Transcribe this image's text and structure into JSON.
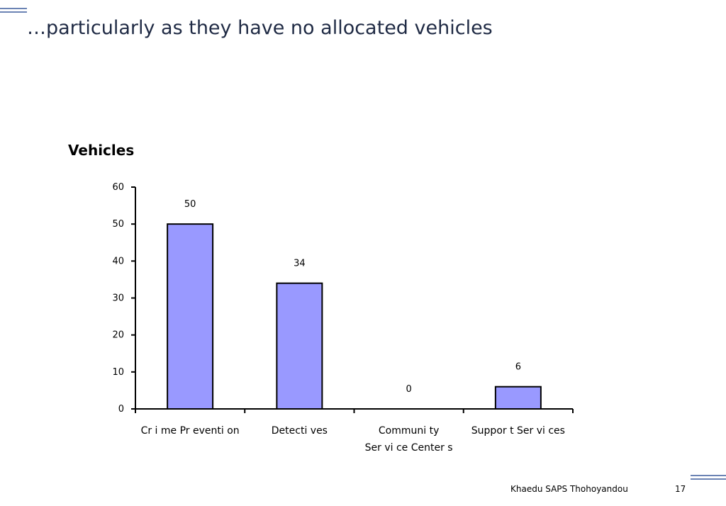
{
  "slide": {
    "title": "…particularly as they have no allocated vehicles",
    "footer_org": "Khaedu SAPS Thohoyandou",
    "page_number": "17"
  },
  "colors": {
    "bar_fill": "#9999ff",
    "bar_stroke": "#000000",
    "title_text": "#1f2a44",
    "accent_lines": "#3a5a9c"
  },
  "chart_data": {
    "type": "bar",
    "title": "Vehicles",
    "categories": [
      "Cr i me Pr eventi on",
      "Detecti ves",
      "Communi ty\nSer vi ce Center s",
      "Suppor t Ser vi ces"
    ],
    "values": [
      50,
      34,
      0,
      6
    ],
    "data_labels": [
      "50",
      "34",
      "0",
      "6"
    ],
    "ylim": [
      0,
      60
    ],
    "yticks": [
      0,
      10,
      20,
      30,
      40,
      50,
      60
    ],
    "grid": false,
    "legend": "none"
  }
}
